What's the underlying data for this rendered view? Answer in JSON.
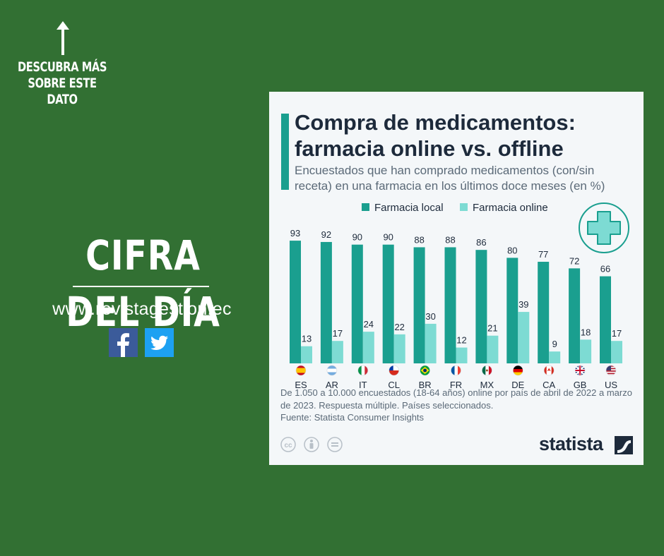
{
  "promo": {
    "discover_lines": [
      "DESCUBRA MÁS",
      "SOBRE ESTE",
      "DATO"
    ],
    "headline": "CIFRA DEL DÍA",
    "url": "www.revistagestion.ec",
    "social_icons": [
      "facebook-icon",
      "twitter-icon"
    ],
    "colors": {
      "background": "#327033",
      "text": "#ffffff"
    }
  },
  "infographic": {
    "title_line1": "Compra de medicamentos:",
    "title_line2": "farmacia online vs. offline",
    "subtitle": "Encuestados que han comprado medicamentos (con/sin receta) en una farmacia en los últimos doce meses (en %)",
    "footnote": "De 1.050 a 10.000 encuestados (18-64 años) online por país de abril de 2022 a marzo de 2023. Respuesta múltiple. Países seleccionados.",
    "source": "Fuente: Statista Consumer Insights",
    "brand": "statista",
    "decor_icon": "pharmacy-cross-icon"
  },
  "chart_data": {
    "type": "bar",
    "categories": [
      "ES",
      "AR",
      "IT",
      "CL",
      "BR",
      "FR",
      "MX",
      "DE",
      "CA",
      "GB",
      "US"
    ],
    "flag_icons": [
      "flag-es-icon",
      "flag-ar-icon",
      "flag-it-icon",
      "flag-cl-icon",
      "flag-br-icon",
      "flag-fr-icon",
      "flag-mx-icon",
      "flag-de-icon",
      "flag-ca-icon",
      "flag-gb-icon",
      "flag-us-icon"
    ],
    "series": [
      {
        "name": "Farmacia local",
        "values": [
          93,
          92,
          90,
          90,
          88,
          88,
          86,
          80,
          77,
          72,
          66
        ],
        "color": "#1a9f8f"
      },
      {
        "name": "Farmacia online",
        "values": [
          13,
          17,
          24,
          22,
          30,
          12,
          21,
          39,
          9,
          18,
          17
        ],
        "color": "#7ddbd3"
      }
    ],
    "ylim": [
      0,
      100
    ],
    "grid": false,
    "legend": "top",
    "data_labels": true
  }
}
